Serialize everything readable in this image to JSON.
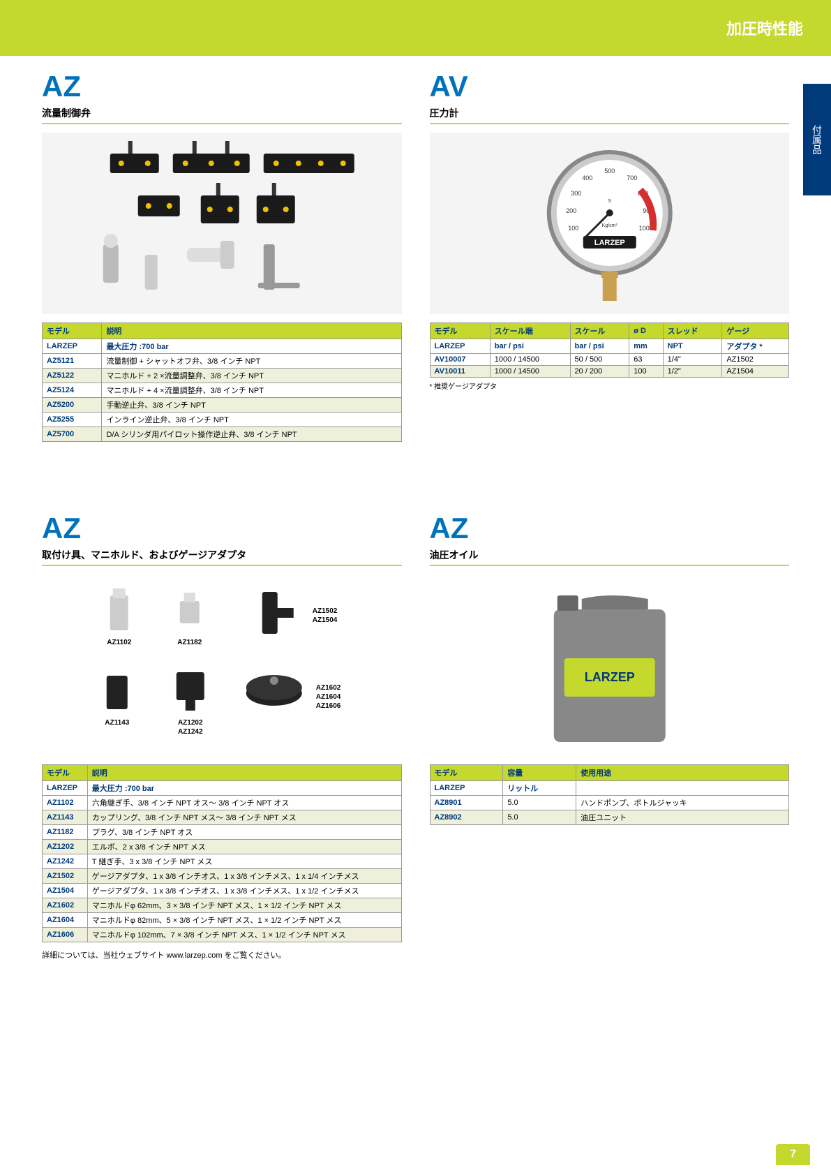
{
  "header": {
    "title": "加圧時性能",
    "side_tab": "付属品"
  },
  "sections": [
    {
      "code": "AZ",
      "subtitle": "流量制御弁",
      "table": {
        "headers": [
          "モデル",
          "説明"
        ],
        "subheaders": [
          "LARZEP",
          "最大圧力 :700 bar"
        ],
        "rows": [
          [
            "AZ5121",
            "流量制御 + シャットオフ弁、3/8 インチ NPT"
          ],
          [
            "AZ5122",
            "マニホルド + 2 ×流量調整弁、3/8 インチ NPT"
          ],
          [
            "AZ5124",
            "マニホルド + 4 ×流量調整弁、3/8 インチ NPT"
          ],
          [
            "AZ5200",
            "手動逆止弁、3/8 インチ NPT"
          ],
          [
            "AZ5255",
            "インライン逆止弁、3/8 インチ NPT"
          ],
          [
            "AZ5700",
            "D/A シリンダ用パイロット操作逆止弁、3/8 インチ NPT"
          ]
        ]
      }
    },
    {
      "code": "AV",
      "subtitle": "圧力計",
      "table": {
        "headers": [
          "モデル",
          "スケール端",
          "スケール",
          "ø D",
          "スレッド",
          "ゲージ"
        ],
        "subheaders": [
          "LARZEP",
          "bar / psi",
          "bar / psi",
          "mm",
          "NPT",
          "アダプタ *"
        ],
        "rows": [
          [
            "AV10007",
            "1000 / 14500",
            "50 / 500",
            "63",
            "1/4\"",
            "AZ1502"
          ],
          [
            "AV10011",
            "1000 / 14500",
            "20 / 200",
            "100",
            "1/2\"",
            "AZ1504"
          ]
        ],
        "footnote": "*  推奨ゲージアダプタ"
      }
    },
    {
      "code": "AZ",
      "subtitle": "取付け具、マニホルド、およびゲージアダプタ",
      "part_labels": [
        "AZ1102",
        "AZ1182",
        "AZ1502",
        "AZ1504",
        "AZ1143",
        "AZ1202",
        "AZ1242",
        "AZ1602",
        "AZ1604",
        "AZ1606"
      ],
      "table": {
        "headers": [
          "モデル",
          "説明"
        ],
        "subheaders": [
          "LARZEP",
          "最大圧力 :700 bar"
        ],
        "rows": [
          [
            "AZ1102",
            "六角継ぎ手、3/8 インチ NPT オス〜 3/8 インチ NPT オス"
          ],
          [
            "AZ1143",
            "カップリング、3/8 インチ NPT メス〜 3/8 インチ NPT メス"
          ],
          [
            "AZ1182",
            "プラグ、3/8 インチ NPT オス"
          ],
          [
            "AZ1202",
            "エルボ、2 x 3/8 インチ NPT メス"
          ],
          [
            "AZ1242",
            "T 継ぎ手、3 x 3/8 インチ NPT メス"
          ],
          [
            "AZ1502",
            "ゲージアダプタ、1 x 3/8 インチオス、1 x 3/8 インチメス、1 x 1/4 インチメス"
          ],
          [
            "AZ1504",
            "ゲージアダプタ、1 x 3/8 インチオス、1 x 3/8 インチメス、1 x 1/2 インチメス"
          ],
          [
            "AZ1602",
            "マニホルドφ 62mm、3 × 3/8 インチ NPT メス、1 × 1/2 インチ NPT メス"
          ],
          [
            "AZ1604",
            "マニホルドφ 82mm、5 × 3/8 インチ NPT メス、1 × 1/2 インチ NPT メス"
          ],
          [
            "AZ1606",
            "マニホルドφ 102mm、7 × 3/8 インチ NPT メス、1 × 1/2 インチ NPT メス"
          ]
        ]
      },
      "footer": "詳細については、当社ウェブサイト www.larzep.com をご覧ください。"
    },
    {
      "code": "AZ",
      "subtitle": "油圧オイル",
      "table": {
        "headers": [
          "モデル",
          "容量",
          "使用用途"
        ],
        "subheaders": [
          "LARZEP",
          "リットル",
          ""
        ],
        "rows": [
          [
            "AZ8901",
            "5.0",
            "ハンドポンプ、ボトルジャッキ"
          ],
          [
            "AZ8902",
            "5.0",
            "油圧ユニット"
          ]
        ]
      }
    }
  ],
  "page_number": "7",
  "colors": {
    "lime": "#c4d82e",
    "blue": "#0072bc",
    "navy": "#003a7a",
    "shade": "#eef0dc"
  }
}
